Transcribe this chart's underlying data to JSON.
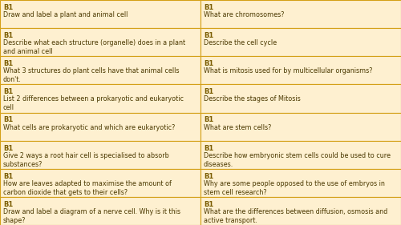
{
  "bg_color": "#FEF0D0",
  "border_color": "#D4A017",
  "label_color": "#7A5C00",
  "text_color": "#4A3800",
  "cols": 2,
  "rows": 8,
  "label_fontsize": 6.0,
  "text_fontsize": 5.8,
  "cards_left": [
    [
      "B1",
      "Draw and label a plant and animal cell"
    ],
    [
      "B1",
      "Describe what each structure (organelle) does in a plant\nand animal cell"
    ],
    [
      "B1",
      "What 3 structures do plant cells have that animal cells\ndon't."
    ],
    [
      "B1",
      "List 2 differences between a prokaryotic and eukaryotic\ncell"
    ],
    [
      "B1",
      "What cells are prokaryotic and which are eukaryotic?"
    ],
    [
      "B1",
      "Give 2 ways a root hair cell is specialised to absorb\nsubstances?"
    ],
    [
      "B1",
      "How are leaves adapted to maximise the amount of\ncarbon dioxide that gets to their cells?"
    ],
    [
      "B1",
      "Draw and label a diagram of a nerve cell. Why is it this\nshape?"
    ]
  ],
  "cards_right": [
    [
      "B1",
      "What are chromosomes?"
    ],
    [
      "B1",
      "Describe the cell cycle"
    ],
    [
      "B1",
      "What is mitosis used for by multicellular organisms?"
    ],
    [
      "B1",
      "Describe the stages of Mitosis"
    ],
    [
      "B1",
      "What are stem cells?"
    ],
    [
      "B1",
      "Describe how embryonic stem cells could be used to cure\ndiseases."
    ],
    [
      "B1",
      "Why are some people opposed to the use of embryos in\nstem cell research?"
    ],
    [
      "B1",
      "What are the differences between diffusion, osmosis and\nactive transport."
    ]
  ]
}
